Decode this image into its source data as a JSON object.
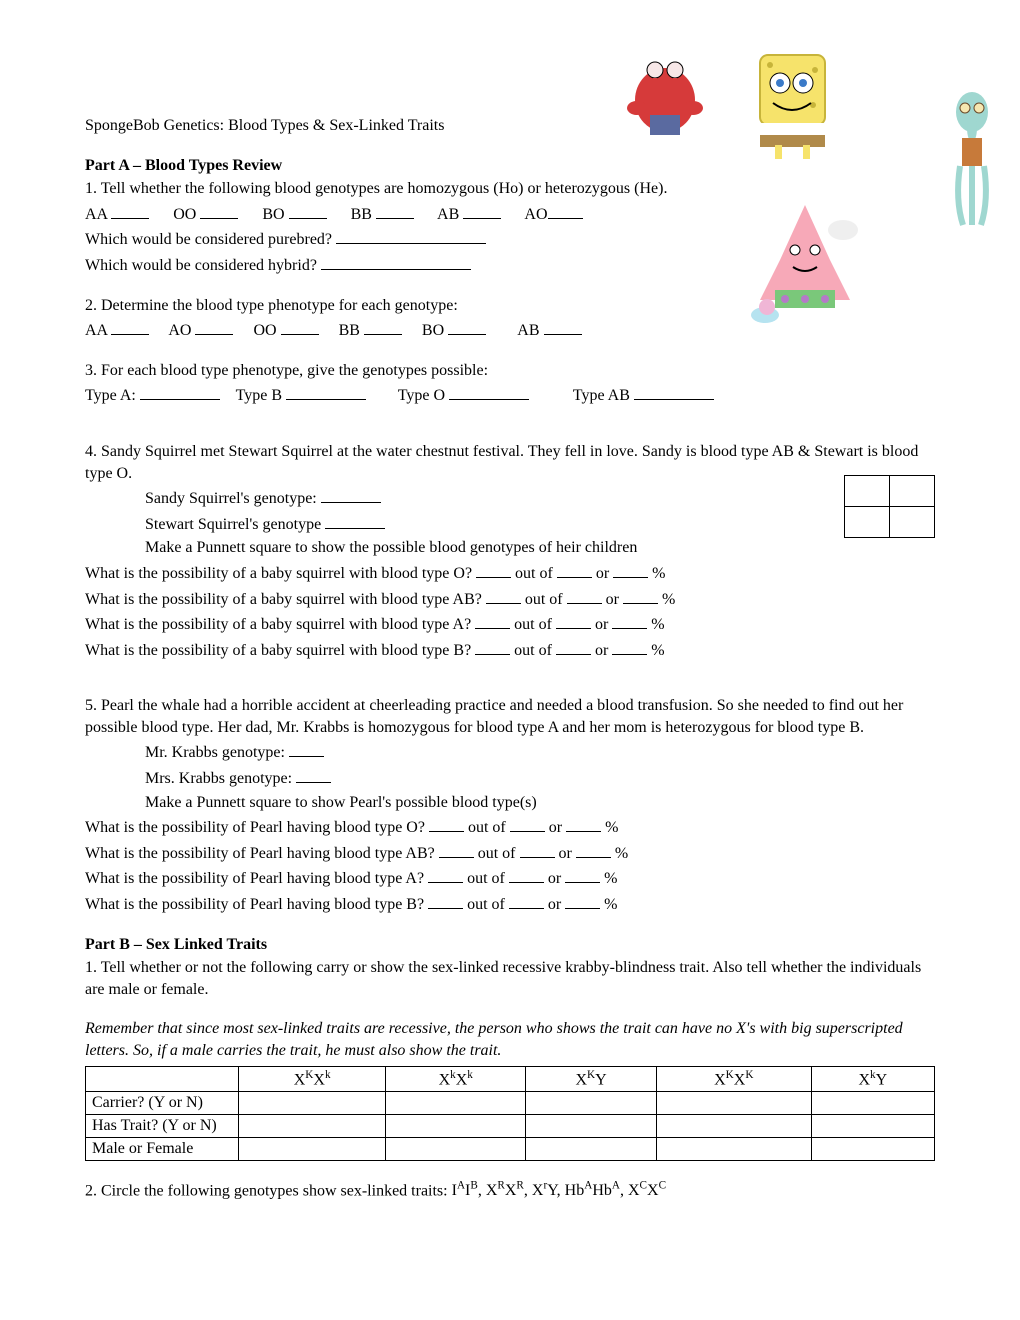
{
  "title": "SpongeBob Genetics: Blood Types & Sex-Linked Traits",
  "partA": {
    "header": "Part A – Blood Types Review",
    "q1": {
      "prompt": "1. Tell whether the following blood genotypes are homozygous (Ho) or heterozygous (He).",
      "items": [
        "AA",
        "OO",
        "BO",
        "BB",
        "AB",
        "AO"
      ],
      "sub1": "Which would be considered purebred?",
      "sub2": "Which would be considered hybrid?"
    },
    "q2": {
      "prompt": "2. Determine the blood type phenotype for each genotype:",
      "items": [
        "AA",
        "AO",
        "OO",
        "BB",
        "BO",
        "AB"
      ]
    },
    "q3": {
      "prompt": "3. For each blood type phenotype, give the genotypes possible:",
      "items": [
        "Type A:",
        "Type B",
        "Type O",
        "Type AB"
      ]
    },
    "q4": {
      "prompt": "4. Sandy Squirrel met Stewart Squirrel at the water chestnut festival. They fell in love. Sandy is blood type AB & Stewart is blood type O.",
      "line1": "Sandy Squirrel's genotype:",
      "line2": "Stewart Squirrel's genotype",
      "line3": "Make a Punnett square to show the possible blood genotypes of heir children",
      "probLines": [
        "What is the possibility of a baby squirrel with blood type O?",
        "What is the possibility of a baby squirrel with blood type AB?",
        "What is the possibility of a baby squirrel with blood type A?",
        "What is the possibility of a baby squirrel with blood type B?"
      ]
    },
    "q5": {
      "prompt": "5. Pearl the whale had a horrible accident at cheerleading practice and needed a blood transfusion. So she needed to find out her possible blood type. Her dad, Mr. Krabbs is homozygous for blood type A and her mom is heterozygous for blood type B.",
      "line1": "Mr. Krabbs genotype:",
      "line2": "Mrs. Krabbs genotype:",
      "line3": "Make a Punnett square to show Pearl's possible blood type(s)",
      "probLines": [
        "What is the possibility of Pearl having blood type O?",
        "What is the possibility of Pearl having blood type AB?",
        "What is the possibility of Pearl having blood type A?",
        "What is the possibility of Pearl having blood type B?"
      ]
    },
    "outOf": "out of",
    "or": "or",
    "pct": "%"
  },
  "partB": {
    "header": "Part B – Sex Linked Traits",
    "q1": "1. Tell whether or not the following carry or show the sex-linked recessive krabby-blindness trait. Also tell whether the individuals are male or female.",
    "note": "Remember that since most sex-linked traits are recessive, the person who shows the trait can have no X's with big superscripted letters. So, if a male carries the trait, he must also show the trait.",
    "table": {
      "rowHeads": [
        "Carrier? (Y or N)",
        "Has Trait? (Y or N)",
        "Male or Female"
      ],
      "colHeads_html": [
        "X<sup>K</sup>X<sup>k</sup>",
        "X<sup>k</sup>X<sup>k</sup>",
        "X<sup>K</sup>Y",
        "X<sup>K</sup>X<sup>K</sup>",
        "X<sup>k</sup>Y"
      ]
    },
    "q2_prefix": "2. Circle the following genotypes show sex-linked traits: ",
    "q2_list_html": "I<sup>A</sup>I<sup>B</sup>, X<sup>R</sup>X<sup>R</sup>, X<sup>r</sup>Y, Hb<sup>A</sup>Hb<sup>A</sup>, X<sup>C</sup>X<sup>C</sup>"
  },
  "characters": {
    "krabs_color": "#d63a3a",
    "spongebob_color": "#f6e36b",
    "squidward_color": "#9fd7d0",
    "patrick_color": "#f7a9b8",
    "gary_color": "#b6e3f0"
  }
}
